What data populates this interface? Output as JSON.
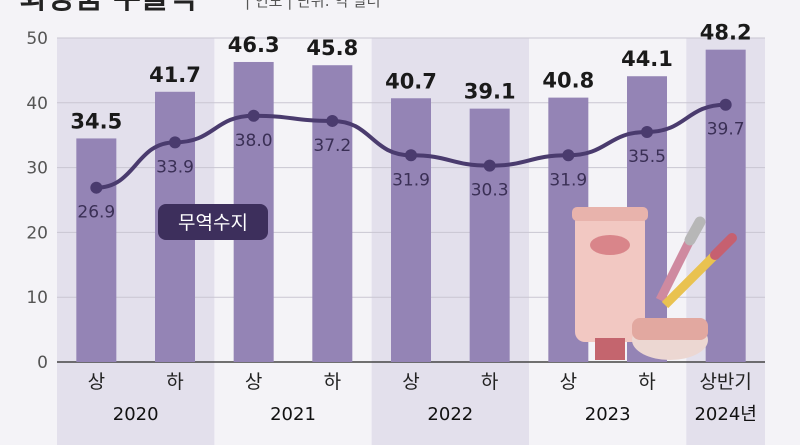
{
  "chart_data": {
    "type": "bar+line",
    "title": "화장품 수출액",
    "subtitle": "| 연도 | 단위: 억 달러",
    "categories": [
      "상",
      "하",
      "상",
      "하",
      "상",
      "하",
      "상",
      "하",
      "상반기"
    ],
    "years": [
      {
        "label": "2020",
        "span": [
          0,
          1
        ]
      },
      {
        "label": "2021",
        "span": [
          2,
          3
        ]
      },
      {
        "label": "2022",
        "span": [
          4,
          5
        ]
      },
      {
        "label": "2023",
        "span": [
          6,
          7
        ]
      },
      {
        "label": "2024년",
        "span": [
          8,
          8
        ]
      }
    ],
    "bar_series": {
      "name": "",
      "values": [
        34.5,
        41.7,
        46.3,
        45.8,
        40.7,
        39.1,
        40.8,
        44.1,
        48.2
      ]
    },
    "line_series": {
      "name": "무역수지",
      "values": [
        26.9,
        33.9,
        38.0,
        37.2,
        31.9,
        30.3,
        31.9,
        35.5,
        39.7
      ]
    },
    "ylim": [
      0,
      50
    ],
    "yticks": [
      0,
      10,
      20,
      30,
      40,
      50
    ],
    "grid": true
  },
  "colors": {
    "bar": "#9484b5",
    "line": "#4a3b6e",
    "band": "#e3e0ec",
    "legend_bg": "#3d2f5c"
  }
}
